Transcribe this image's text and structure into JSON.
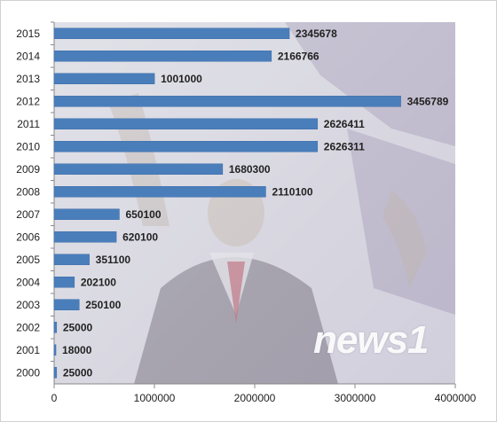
{
  "chart_data": {
    "type": "bar",
    "orientation": "horizontal",
    "categories": [
      "2015",
      "2014",
      "2013",
      "2012",
      "2011",
      "2010",
      "2009",
      "2008",
      "2007",
      "2006",
      "2005",
      "2004",
      "2003",
      "2002",
      "2001",
      "2000"
    ],
    "values": [
      2345678,
      2166766,
      1001000,
      3456789,
      2626411,
      2626311,
      1680300,
      2110100,
      650100,
      620100,
      351100,
      202100,
      250100,
      25000,
      18000,
      25000
    ],
    "xlim": [
      0,
      4000000
    ],
    "xticks": [
      0,
      1000000,
      2000000,
      3000000,
      4000000
    ],
    "xtick_labels": [
      "0",
      "1000000",
      "2000000",
      "3000000",
      "4000000"
    ],
    "grid": false,
    "title": "",
    "xlabel": "",
    "ylabel": "",
    "bar_color": "#4a7ebb"
  },
  "watermark": "news1"
}
